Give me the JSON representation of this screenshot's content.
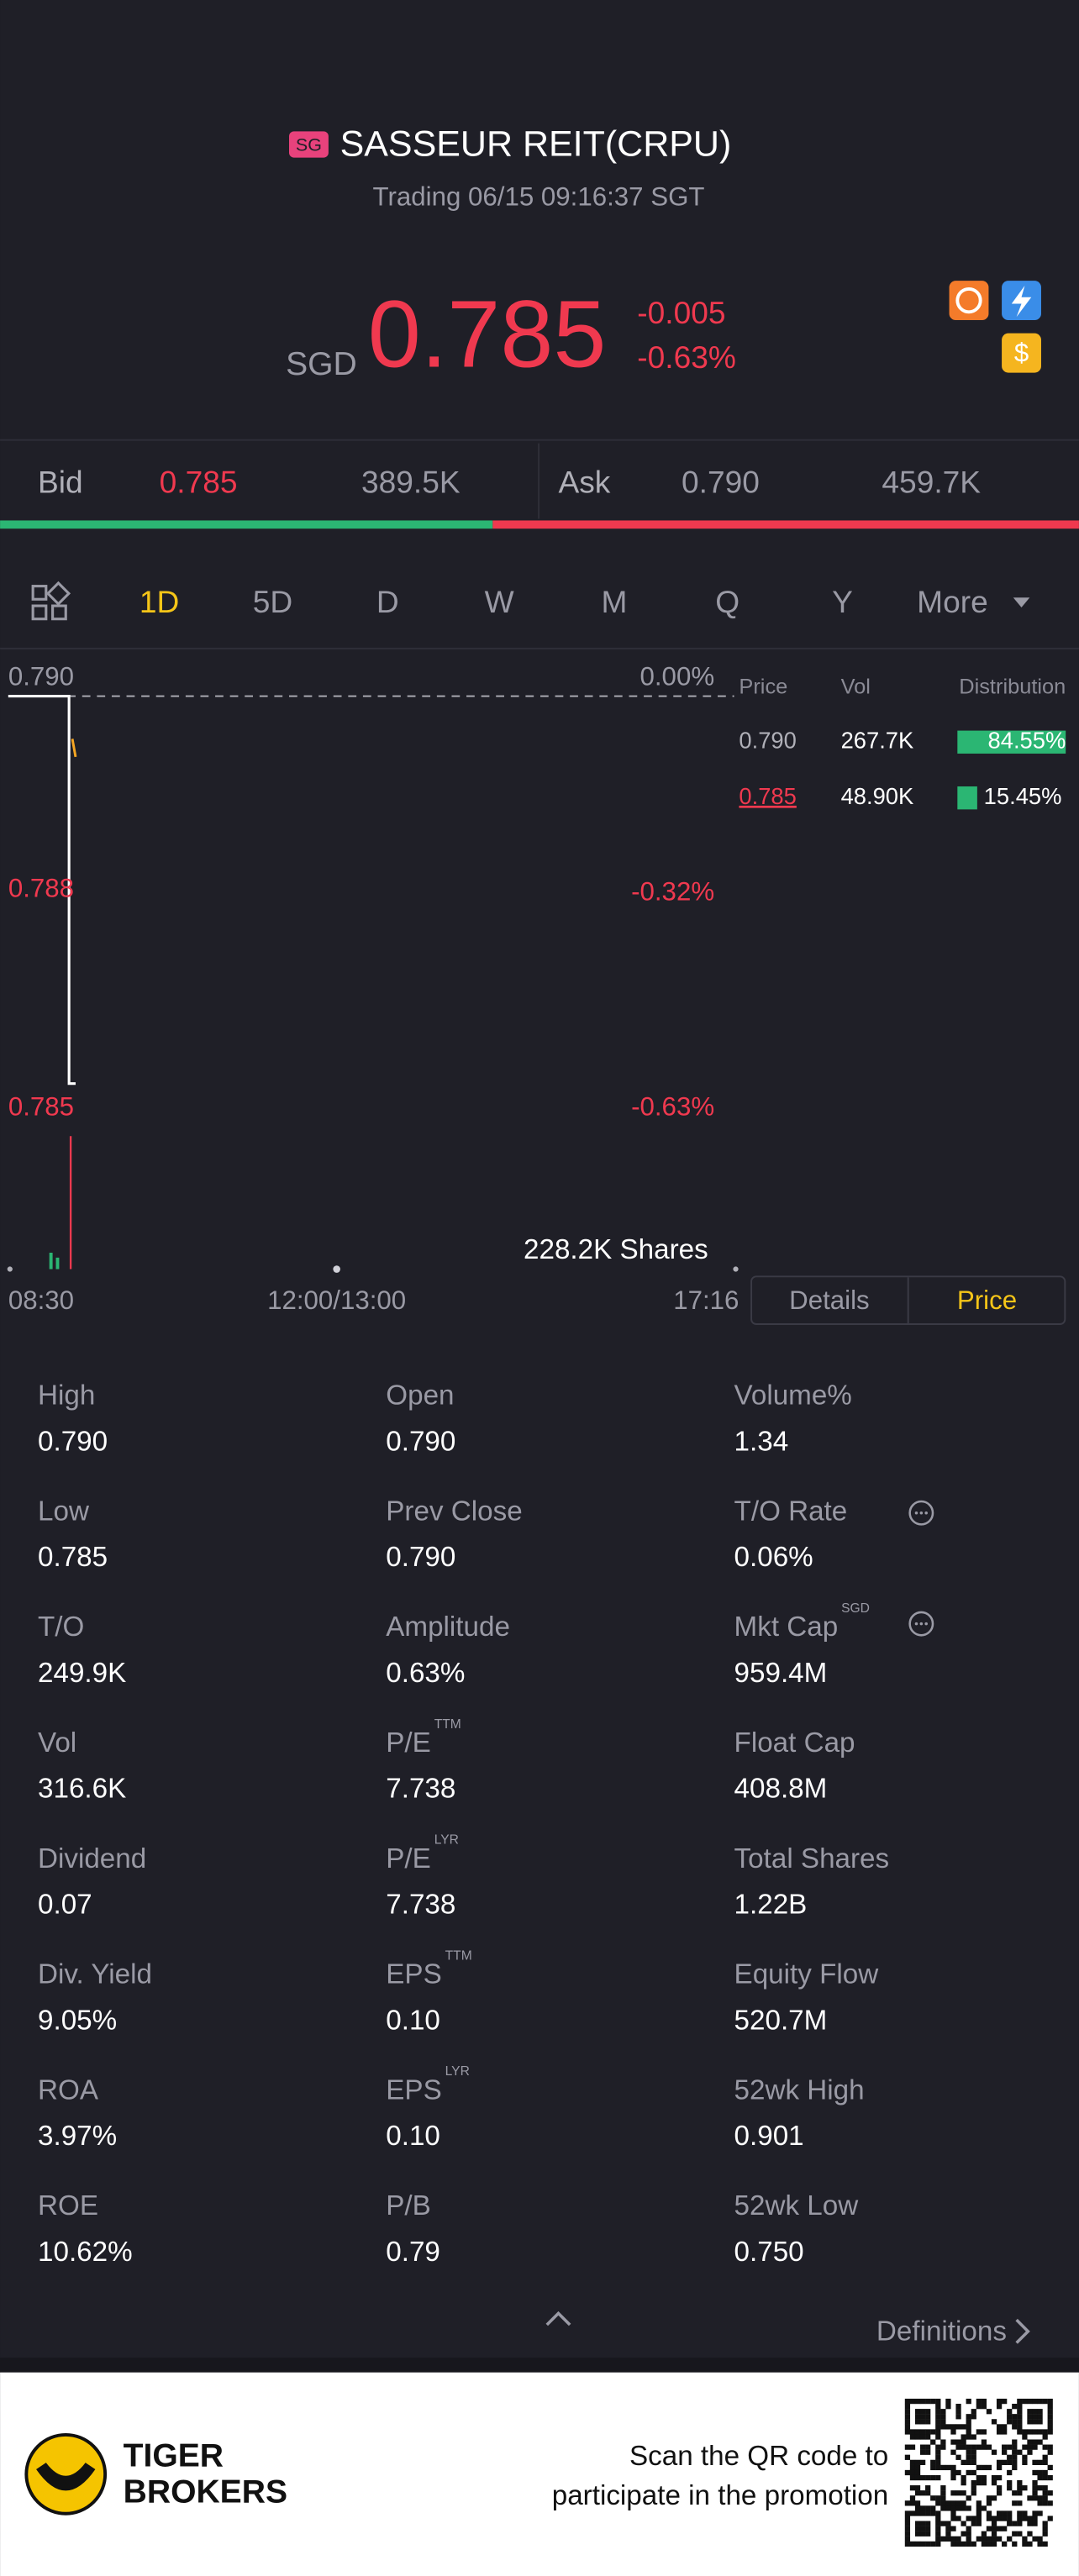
{
  "header": {
    "badge": "SG",
    "title": "SASSEUR REIT(CRPU)",
    "status": "Trading 06/15 09:16:37 SGT"
  },
  "quote": {
    "currency": "SGD",
    "price": "0.785",
    "change": "-0.005",
    "change_pct": "-0.63%"
  },
  "book": {
    "bid_label": "Bid",
    "bid": "0.785",
    "bid_size": "389.5K",
    "ask_label": "Ask",
    "ask": "0.790",
    "ask_size": "459.7K"
  },
  "tabs": [
    "1D",
    "5D",
    "D",
    "W",
    "M",
    "Q",
    "Y",
    "More"
  ],
  "chart": {
    "y_labels": [
      {
        "price": "0.790",
        "pct": "0.00%"
      },
      {
        "price": "0.788",
        "pct": "-0.32%"
      },
      {
        "price": "0.785",
        "pct": "-0.63%"
      }
    ],
    "volume": "228.2K Shares",
    "x_labels": [
      "08:30",
      "12:00/13:00",
      "17:16"
    ]
  },
  "distribution": {
    "headers": [
      "Price",
      "Vol",
      "Distribution"
    ],
    "rows": [
      [
        "0.790",
        "267.7K",
        "84.55%"
      ],
      [
        "0.785",
        "48.90K",
        "15.45%"
      ]
    ]
  },
  "toggle": [
    "Details",
    "Price"
  ],
  "stats": [
    [
      {
        "label": "High",
        "value": "0.790"
      },
      {
        "label": "Open",
        "value": "0.790"
      },
      {
        "label": "Volume%",
        "value": "1.34"
      }
    ],
    [
      {
        "label": "Low",
        "value": "0.785"
      },
      {
        "label": "Prev Close",
        "value": "0.790"
      },
      {
        "label": "T/O Rate",
        "value": "0.06%"
      }
    ],
    [
      {
        "label": "T/O",
        "value": "249.9K"
      },
      {
        "label": "Amplitude",
        "value": "0.63%"
      },
      {
        "label": "Mkt Cap",
        "sup": "SGD",
        "value": "959.4M"
      }
    ],
    [
      {
        "label": "Vol",
        "value": "316.6K"
      },
      {
        "label": "P/E",
        "sup": "TTM",
        "value": "7.738"
      },
      {
        "label": "Float Cap",
        "value": "408.8M"
      }
    ],
    [
      {
        "label": "Dividend",
        "value": "0.07"
      },
      {
        "label": "P/E",
        "sup": "LYR",
        "value": "7.738"
      },
      {
        "label": "Total Shares",
        "value": "1.22B"
      }
    ],
    [
      {
        "label": "Div. Yield",
        "value": "9.05%"
      },
      {
        "label": "EPS",
        "sup": "TTM",
        "value": "0.10"
      },
      {
        "label": "Equity Flow",
        "value": "520.7M"
      }
    ],
    [
      {
        "label": "ROA",
        "value": "3.97%"
      },
      {
        "label": "EPS",
        "sup": "LYR",
        "value": "0.10"
      },
      {
        "label": "52wk High",
        "value": "0.901"
      }
    ],
    [
      {
        "label": "ROE",
        "value": "10.62%"
      },
      {
        "label": "P/B",
        "value": "0.79"
      },
      {
        "label": "52wk Low",
        "value": "0.750"
      }
    ]
  ],
  "footer": {
    "definitions": "Definitions",
    "brand": [
      "TIGER",
      "BROKERS"
    ],
    "promo": [
      "Scan the QR code to",
      "participate in the promotion"
    ]
  }
}
